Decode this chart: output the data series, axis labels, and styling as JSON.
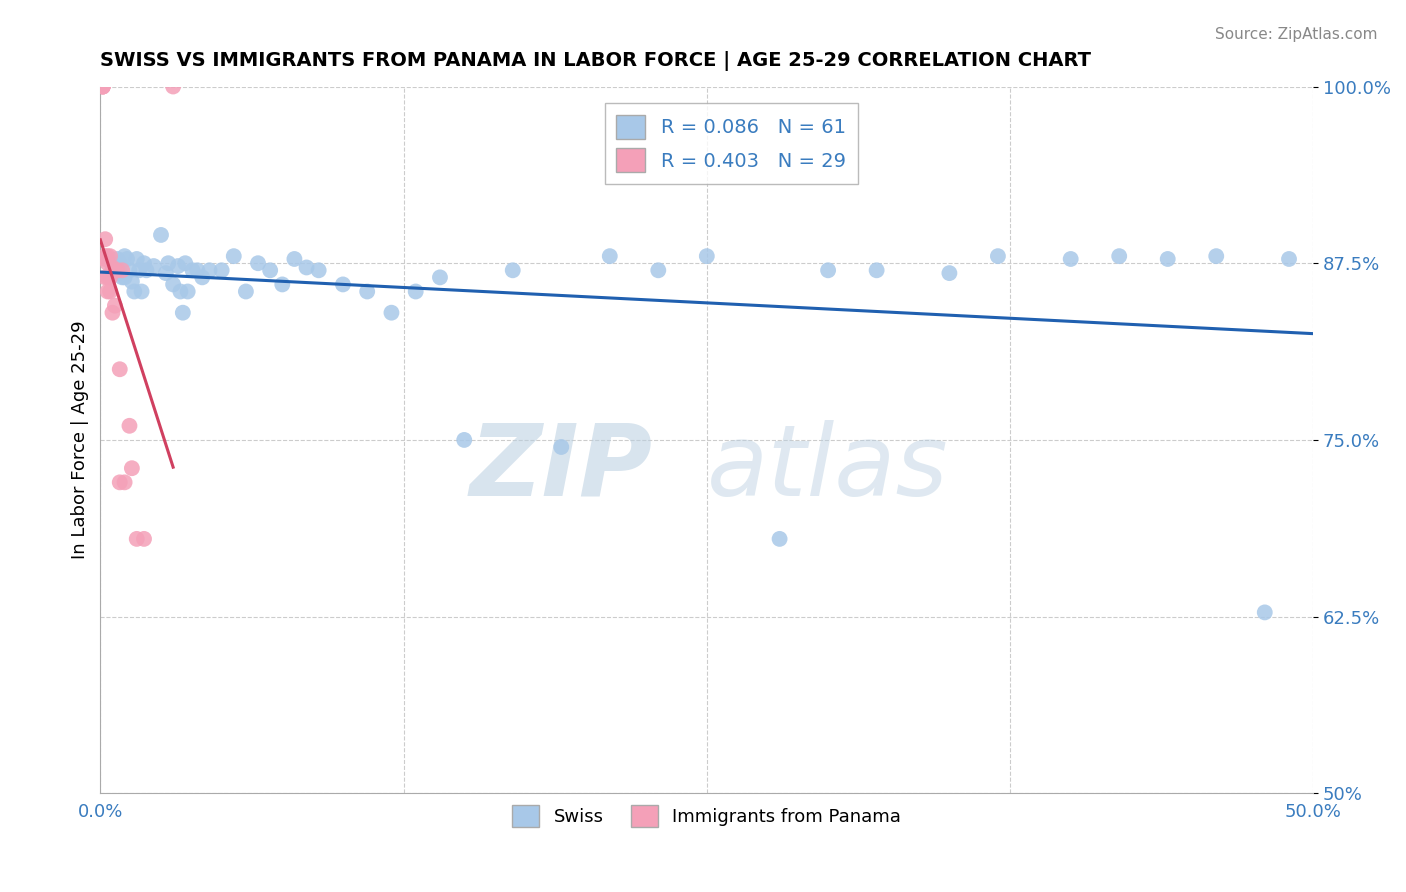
{
  "title": "SWISS VS IMMIGRANTS FROM PANAMA IN LABOR FORCE | AGE 25-29 CORRELATION CHART",
  "source_text": "Source: ZipAtlas.com",
  "ylabel": "In Labor Force | Age 25-29",
  "xlim": [
    0.0,
    0.5
  ],
  "ylim": [
    0.5,
    1.0
  ],
  "swiss_r": 0.086,
  "swiss_n": 61,
  "panama_r": 0.403,
  "panama_n": 29,
  "swiss_color": "#a8c8e8",
  "panama_color": "#f4a0b8",
  "swiss_line_color": "#2060b0",
  "panama_line_color": "#d04060",
  "swiss_x": [
    0.005,
    0.007,
    0.008,
    0.008,
    0.009,
    0.01,
    0.01,
    0.011,
    0.012,
    0.013,
    0.014,
    0.015,
    0.016,
    0.017,
    0.018,
    0.019,
    0.022,
    0.025,
    0.027,
    0.028,
    0.03,
    0.032,
    0.033,
    0.034,
    0.035,
    0.036,
    0.038,
    0.04,
    0.042,
    0.045,
    0.05,
    0.055,
    0.06,
    0.065,
    0.07,
    0.075,
    0.08,
    0.085,
    0.09,
    0.1,
    0.11,
    0.12,
    0.13,
    0.14,
    0.15,
    0.17,
    0.19,
    0.21,
    0.23,
    0.25,
    0.28,
    0.3,
    0.32,
    0.35,
    0.37,
    0.4,
    0.42,
    0.44,
    0.46,
    0.48,
    0.49
  ],
  "swiss_y": [
    0.87,
    0.878,
    0.875,
    0.868,
    0.865,
    0.88,
    0.865,
    0.878,
    0.87,
    0.862,
    0.855,
    0.878,
    0.87,
    0.855,
    0.875,
    0.87,
    0.873,
    0.895,
    0.868,
    0.875,
    0.86,
    0.873,
    0.855,
    0.84,
    0.875,
    0.855,
    0.87,
    0.87,
    0.865,
    0.87,
    0.87,
    0.88,
    0.855,
    0.875,
    0.87,
    0.86,
    0.878,
    0.872,
    0.87,
    0.86,
    0.855,
    0.84,
    0.855,
    0.865,
    0.75,
    0.87,
    0.745,
    0.88,
    0.87,
    0.88,
    0.68,
    0.87,
    0.87,
    0.868,
    0.88,
    0.878,
    0.88,
    0.878,
    0.88,
    0.628,
    0.878
  ],
  "panama_x": [
    0.001,
    0.001,
    0.001,
    0.001,
    0.002,
    0.002,
    0.002,
    0.002,
    0.003,
    0.003,
    0.003,
    0.003,
    0.004,
    0.004,
    0.004,
    0.005,
    0.005,
    0.006,
    0.006,
    0.007,
    0.008,
    0.008,
    0.009,
    0.01,
    0.012,
    0.013,
    0.015,
    0.018,
    0.03
  ],
  "panama_y": [
    1.0,
    1.0,
    1.0,
    1.0,
    0.88,
    0.892,
    0.878,
    0.865,
    0.88,
    0.865,
    0.875,
    0.855,
    0.88,
    0.865,
    0.855,
    0.872,
    0.84,
    0.87,
    0.845,
    0.87,
    0.8,
    0.72,
    0.87,
    0.72,
    0.76,
    0.73,
    0.68,
    0.68,
    1.0
  ]
}
